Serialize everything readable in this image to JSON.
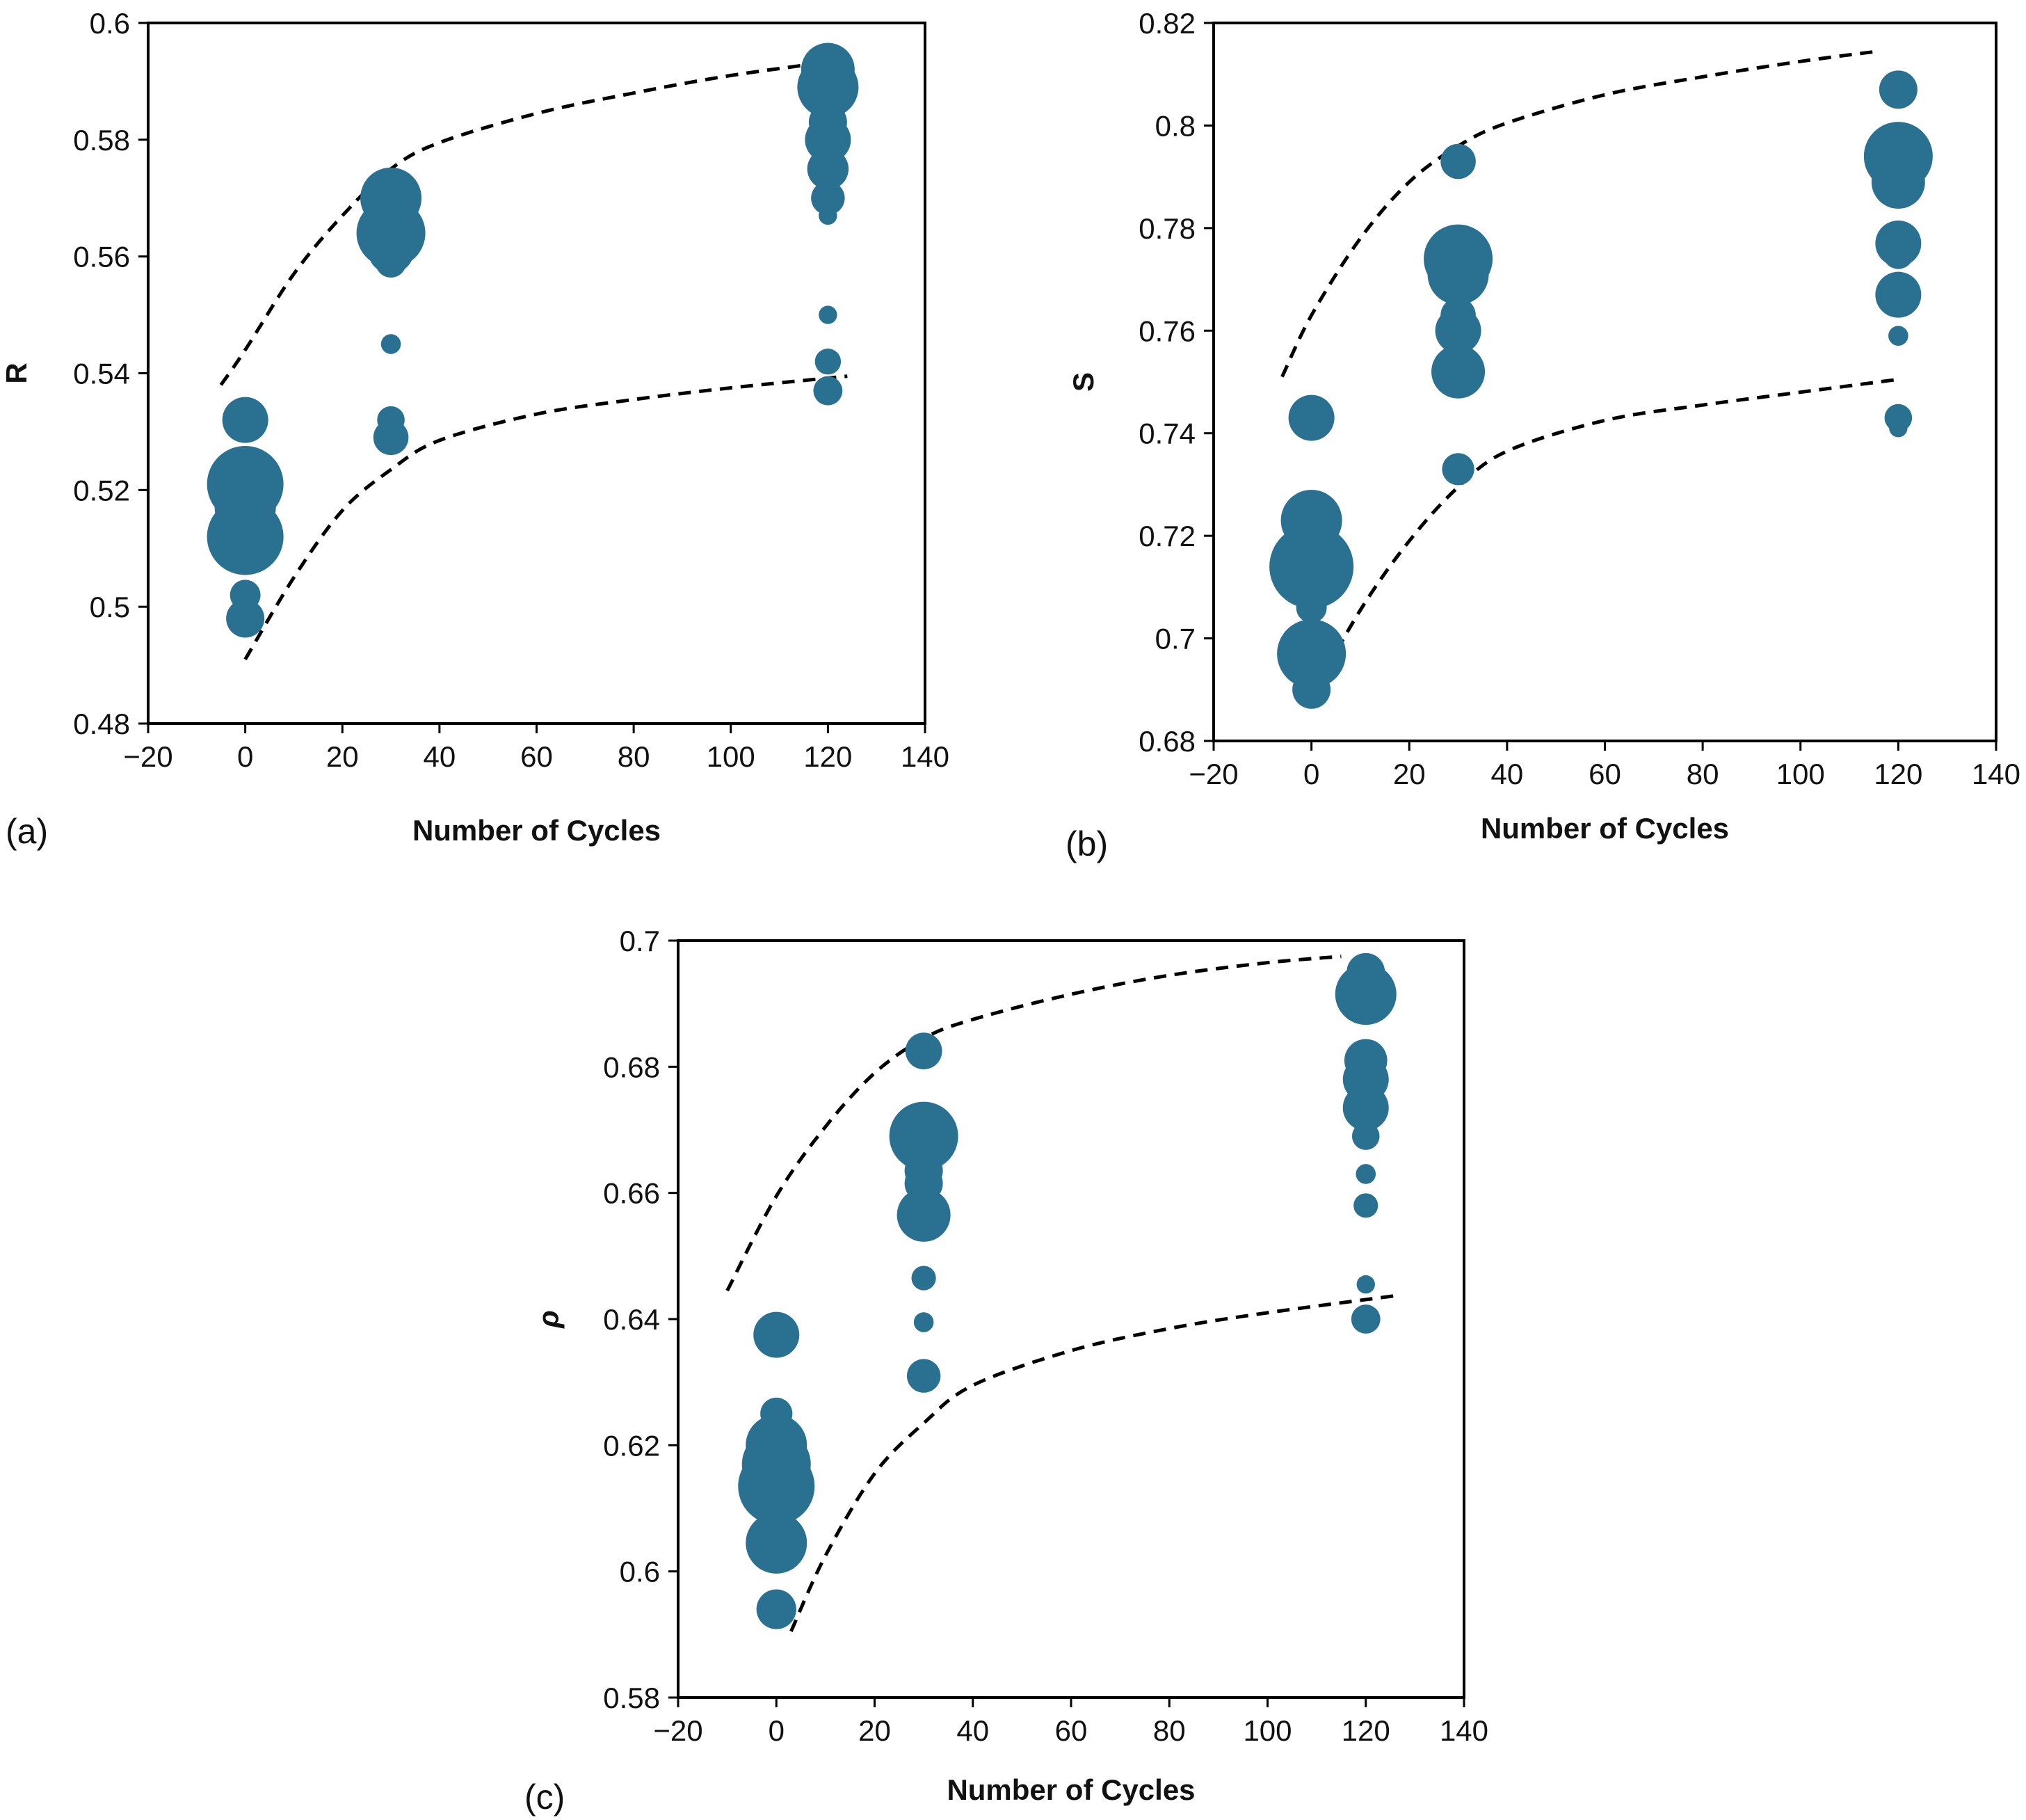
{
  "colors": {
    "marker": "#2a7091",
    "frame": "#000000",
    "band": "#000000"
  },
  "chart_data": [
    {
      "type": "scatter",
      "panel_label": "(a)",
      "xlabel": "Number of Cycles",
      "ylabel": "R",
      "xlim": [
        -20,
        140
      ],
      "ylim": [
        0.48,
        0.6
      ],
      "x_ticks": [
        -20,
        0,
        20,
        40,
        60,
        80,
        100,
        120,
        140
      ],
      "y_ticks": [
        0.48,
        0.5,
        0.52,
        0.54,
        0.56,
        0.58,
        0.6
      ],
      "x_tick_labels": [
        "−20",
        "0",
        "20",
        "40",
        "60",
        "80",
        "100",
        "120",
        "140"
      ],
      "y_tick_labels": [
        "0.48",
        "0.5",
        "0.52",
        "0.54",
        "0.56",
        "0.58",
        "0.6"
      ],
      "grid": false,
      "marker_size_note": "bubble size varies by point",
      "points": [
        {
          "x": 0,
          "y": 0.532,
          "s": 3
        },
        {
          "x": 0,
          "y": 0.522,
          "s": 4
        },
        {
          "x": 0,
          "y": 0.521,
          "s": 5
        },
        {
          "x": 0,
          "y": 0.517,
          "s": 4
        },
        {
          "x": 0,
          "y": 0.512,
          "s": 5
        },
        {
          "x": 0,
          "y": 0.502,
          "s": 2
        },
        {
          "x": 0,
          "y": 0.498,
          "s": 2.5
        },
        {
          "x": 0,
          "y": 0.533,
          "s": 2
        },
        {
          "x": 30,
          "y": 0.57,
          "s": 4
        },
        {
          "x": 30,
          "y": 0.567,
          "s": 3
        },
        {
          "x": 30,
          "y": 0.564,
          "s": 4.5
        },
        {
          "x": 30,
          "y": 0.561,
          "s": 3
        },
        {
          "x": 30,
          "y": 0.559,
          "s": 2
        },
        {
          "x": 30,
          "y": 0.545,
          "s": 1.3
        },
        {
          "x": 30,
          "y": 0.532,
          "s": 1.8
        },
        {
          "x": 30,
          "y": 0.529,
          "s": 2.3
        },
        {
          "x": 120,
          "y": 0.592,
          "s": 3.5
        },
        {
          "x": 120,
          "y": 0.589,
          "s": 4
        },
        {
          "x": 120,
          "y": 0.583,
          "s": 2.5
        },
        {
          "x": 120,
          "y": 0.58,
          "s": 3
        },
        {
          "x": 120,
          "y": 0.575,
          "s": 2.7
        },
        {
          "x": 120,
          "y": 0.57,
          "s": 2.2
        },
        {
          "x": 120,
          "y": 0.567,
          "s": 1.2
        },
        {
          "x": 120,
          "y": 0.55,
          "s": 1.2
        },
        {
          "x": 120,
          "y": 0.542,
          "s": 1.7
        },
        {
          "x": 120,
          "y": 0.537,
          "s": 1.9
        }
      ],
      "bands": [
        {
          "name": "upper",
          "points": [
            [
              -5,
              0.538
            ],
            [
              0,
              0.544
            ],
            [
              10,
              0.557
            ],
            [
              20,
              0.567
            ],
            [
              30,
              0.575
            ],
            [
              40,
              0.5795
            ],
            [
              60,
              0.5845
            ],
            [
              80,
              0.588
            ],
            [
              100,
              0.591
            ],
            [
              122,
              0.5935
            ]
          ]
        },
        {
          "name": "lower",
          "points": [
            [
              0,
              0.491
            ],
            [
              10,
              0.505
            ],
            [
              20,
              0.5165
            ],
            [
              30,
              0.5235
            ],
            [
              40,
              0.5285
            ],
            [
              60,
              0.533
            ],
            [
              80,
              0.5355
            ],
            [
              100,
              0.5375
            ],
            [
              124,
              0.5395
            ]
          ]
        }
      ]
    },
    {
      "type": "scatter",
      "panel_label": "(b)",
      "xlabel": "Number of Cycles",
      "ylabel": "S",
      "xlim": [
        -20,
        140
      ],
      "ylim": [
        0.68,
        0.82
      ],
      "x_ticks": [
        -20,
        0,
        20,
        40,
        60,
        80,
        100,
        120,
        140
      ],
      "y_ticks": [
        0.68,
        0.7,
        0.72,
        0.74,
        0.76,
        0.78,
        0.8,
        0.82
      ],
      "x_tick_labels": [
        "−20",
        "0",
        "20",
        "40",
        "60",
        "80",
        "100",
        "120",
        "140"
      ],
      "y_tick_labels": [
        "0.68",
        "0.7",
        "0.72",
        "0.74",
        "0.76",
        "0.78",
        "0.8",
        "0.82"
      ],
      "grid": false,
      "points": [
        {
          "x": 0,
          "y": 0.743,
          "s": 3
        },
        {
          "x": 0,
          "y": 0.723,
          "s": 4
        },
        {
          "x": 0,
          "y": 0.714,
          "s": 5.5
        },
        {
          "x": 0,
          "y": 0.706,
          "s": 2
        },
        {
          "x": 0,
          "y": 0.702,
          "s": 1.5
        },
        {
          "x": 0,
          "y": 0.697,
          "s": 4.5
        },
        {
          "x": 0,
          "y": 0.69,
          "s": 2.5
        },
        {
          "x": 30,
          "y": 0.793,
          "s": 2.3
        },
        {
          "x": 30,
          "y": 0.774,
          "s": 4.5
        },
        {
          "x": 30,
          "y": 0.771,
          "s": 4
        },
        {
          "x": 30,
          "y": 0.763,
          "s": 2.3
        },
        {
          "x": 30,
          "y": 0.76,
          "s": 3
        },
        {
          "x": 30,
          "y": 0.752,
          "s": 3.5
        },
        {
          "x": 30,
          "y": 0.733,
          "s": 2.1
        },
        {
          "x": 120,
          "y": 0.807,
          "s": 2.5
        },
        {
          "x": 120,
          "y": 0.794,
          "s": 4.5
        },
        {
          "x": 120,
          "y": 0.789,
          "s": 3.5
        },
        {
          "x": 120,
          "y": 0.777,
          "s": 3
        },
        {
          "x": 120,
          "y": 0.775,
          "s": 2
        },
        {
          "x": 120,
          "y": 0.767,
          "s": 3
        },
        {
          "x": 120,
          "y": 0.759,
          "s": 1.3
        },
        {
          "x": 120,
          "y": 0.743,
          "s": 1.8
        },
        {
          "x": 120,
          "y": 0.741,
          "s": 1.2
        }
      ],
      "bands": [
        {
          "name": "upper",
          "points": [
            [
              -6,
              0.751
            ],
            [
              0,
              0.763
            ],
            [
              10,
              0.778
            ],
            [
              20,
              0.789
            ],
            [
              30,
              0.796
            ],
            [
              40,
              0.8005
            ],
            [
              60,
              0.806
            ],
            [
              80,
              0.8095
            ],
            [
              100,
              0.8125
            ],
            [
              116,
              0.8145
            ]
          ]
        },
        {
          "name": "lower",
          "points": [
            [
              -1,
              0.687
            ],
            [
              10,
              0.7055
            ],
            [
              20,
              0.719
            ],
            [
              30,
              0.7295
            ],
            [
              40,
              0.7365
            ],
            [
              60,
              0.7425
            ],
            [
              80,
              0.7455
            ],
            [
              100,
              0.748
            ],
            [
              120,
              0.7505
            ]
          ]
        }
      ]
    },
    {
      "type": "scatter",
      "panel_label": "(c)",
      "xlabel": "Number of Cycles",
      "ylabel": "ρ",
      "xlim": [
        -20,
        140
      ],
      "ylim": [
        0.58,
        0.7
      ],
      "x_ticks": [
        -20,
        0,
        20,
        40,
        60,
        80,
        100,
        120,
        140
      ],
      "y_ticks": [
        0.58,
        0.6,
        0.62,
        0.64,
        0.66,
        0.68,
        0.7
      ],
      "x_tick_labels": [
        "−20",
        "0",
        "20",
        "40",
        "60",
        "80",
        "100",
        "120",
        "140"
      ],
      "y_tick_labels": [
        "0.58",
        "0.6",
        "0.62",
        "0.64",
        "0.66",
        "0.68",
        "0.7"
      ],
      "grid": false,
      "points": [
        {
          "x": 0,
          "y": 0.6375,
          "s": 3
        },
        {
          "x": 0,
          "y": 0.625,
          "s": 2.1
        },
        {
          "x": 0,
          "y": 0.62,
          "s": 4
        },
        {
          "x": 0,
          "y": 0.617,
          "s": 4.5
        },
        {
          "x": 0,
          "y": 0.6135,
          "s": 5
        },
        {
          "x": 0,
          "y": 0.6045,
          "s": 4
        },
        {
          "x": 0,
          "y": 0.594,
          "s": 2.6
        },
        {
          "x": 30,
          "y": 0.6825,
          "s": 2.4
        },
        {
          "x": 30,
          "y": 0.67,
          "s": 3.5
        },
        {
          "x": 30,
          "y": 0.669,
          "s": 4.5
        },
        {
          "x": 30,
          "y": 0.6635,
          "s": 2.5
        },
        {
          "x": 30,
          "y": 0.6615,
          "s": 2.5
        },
        {
          "x": 30,
          "y": 0.6565,
          "s": 3.5
        },
        {
          "x": 30,
          "y": 0.6465,
          "s": 1.6
        },
        {
          "x": 30,
          "y": 0.6395,
          "s": 1.3
        },
        {
          "x": 30,
          "y": 0.631,
          "s": 2.2
        },
        {
          "x": 120,
          "y": 0.695,
          "s": 2.5
        },
        {
          "x": 120,
          "y": 0.6915,
          "s": 4
        },
        {
          "x": 120,
          "y": 0.681,
          "s": 2.8
        },
        {
          "x": 120,
          "y": 0.678,
          "s": 3
        },
        {
          "x": 120,
          "y": 0.6735,
          "s": 3
        },
        {
          "x": 120,
          "y": 0.669,
          "s": 1.8
        },
        {
          "x": 120,
          "y": 0.663,
          "s": 1.3
        },
        {
          "x": 120,
          "y": 0.658,
          "s": 1.6
        },
        {
          "x": 120,
          "y": 0.6455,
          "s": 1.2
        },
        {
          "x": 120,
          "y": 0.64,
          "s": 1.9
        }
      ],
      "bands": [
        {
          "name": "upper",
          "points": [
            [
              -10,
              0.6445
            ],
            [
              0,
              0.6595
            ],
            [
              10,
              0.6705
            ],
            [
              20,
              0.679
            ],
            [
              30,
              0.6845
            ],
            [
              40,
              0.6875
            ],
            [
              60,
              0.6915
            ],
            [
              80,
              0.6945
            ],
            [
              100,
              0.6965
            ],
            [
              115,
              0.6975
            ]
          ]
        },
        {
          "name": "lower",
          "points": [
            [
              3,
              0.5905
            ],
            [
              10,
              0.6025
            ],
            [
              20,
              0.6155
            ],
            [
              30,
              0.6235
            ],
            [
              40,
              0.6295
            ],
            [
              60,
              0.635
            ],
            [
              80,
              0.6385
            ],
            [
              100,
              0.641
            ],
            [
              127,
              0.6438
            ]
          ]
        }
      ]
    }
  ]
}
